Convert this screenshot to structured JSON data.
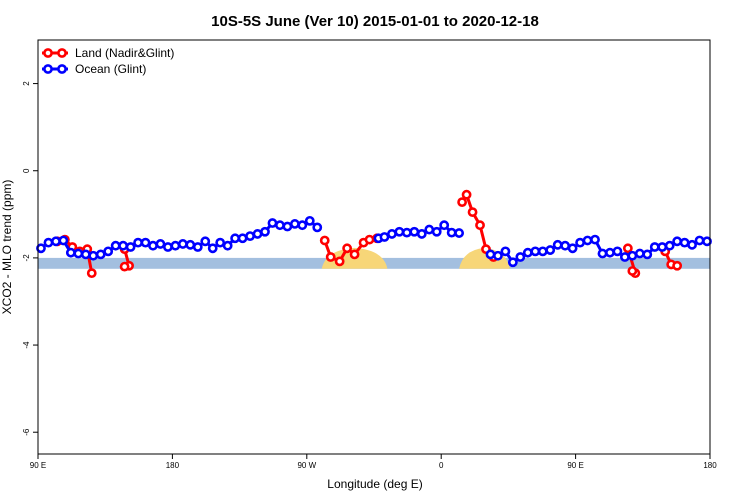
{
  "chart_data": {
    "type": "line",
    "title": "10S-5S June (Ver 10)   2015-01-01 to 2020-12-18",
    "xlabel": "Longitude (deg E)",
    "ylabel": "XCO2 - MLO trend (ppm)",
    "xlim": [
      90,
      540
    ],
    "ylim": [
      -6.5,
      3
    ],
    "x_ticks": [
      {
        "value": 90,
        "label": "90 E"
      },
      {
        "value": 180,
        "label": "180"
      },
      {
        "value": 270,
        "label": "90 W"
      },
      {
        "value": 360,
        "label": "0"
      },
      {
        "value": 450,
        "label": "90 E"
      },
      {
        "value": 540,
        "label": "180"
      }
    ],
    "y_ticks": [
      {
        "value": -6,
        "label": "-6"
      },
      {
        "value": -4,
        "label": "-4"
      },
      {
        "value": -2,
        "label": "-2"
      },
      {
        "value": 0,
        "label": "0"
      },
      {
        "value": 2,
        "label": "2"
      }
    ],
    "legend_position": "top-left",
    "grid": false,
    "background_band": {
      "y_range": [
        -2.25,
        -2.0
      ],
      "ocean_color": "#a3bfdf",
      "land_color": "#f7d678",
      "land_x_ranges": [
        [
          280,
          324
        ],
        [
          372,
          406
        ]
      ]
    },
    "series": [
      {
        "name": "Land (Nadir&Glint)",
        "color": "#ff0000",
        "segments": [
          {
            "x": [
              103,
              108,
              113,
              118,
              123,
              126
            ],
            "y": [
              -1.62,
              -1.58,
              -1.75,
              -1.85,
              -1.8,
              -2.35
            ]
          },
          {
            "x": [
              148,
              151,
              148
            ],
            "y": [
              -1.8,
              -2.18,
              -2.2
            ]
          },
          {
            "x": [
              282,
              286,
              292,
              297,
              302,
              308,
              312,
              317
            ],
            "y": [
              -1.6,
              -1.98,
              -2.08,
              -1.78,
              -1.92,
              -1.65,
              -1.58,
              -1.55
            ]
          },
          {
            "x": [
              374,
              377,
              381,
              386,
              390,
              395
            ],
            "y": [
              -0.72,
              -0.55,
              -0.95,
              -1.25,
              -1.8,
              -1.98
            ]
          },
          {
            "x": [
              485,
              490,
              488
            ],
            "y": [
              -1.78,
              -2.35,
              -2.3
            ]
          },
          {
            "x": [
              510,
              514,
              518
            ],
            "y": [
              -1.85,
              -2.15,
              -2.18
            ]
          }
        ]
      },
      {
        "name": "Ocean (Glint)",
        "color": "#0000ff",
        "segments": [
          {
            "x": [
              92,
              97,
              102,
              107,
              112,
              117,
              122,
              127,
              132,
              137,
              142,
              147,
              152,
              157,
              162,
              167,
              172,
              177,
              182,
              187,
              192,
              197,
              202,
              207,
              212,
              217,
              222,
              227,
              232,
              237,
              242,
              247,
              252,
              257,
              262,
              267,
              272,
              277
            ],
            "y": [
              -1.78,
              -1.65,
              -1.62,
              -1.6,
              -1.88,
              -1.9,
              -1.92,
              -1.95,
              -1.92,
              -1.85,
              -1.72,
              -1.72,
              -1.75,
              -1.65,
              -1.65,
              -1.72,
              -1.68,
              -1.75,
              -1.72,
              -1.68,
              -1.7,
              -1.75,
              -1.62,
              -1.78,
              -1.65,
              -1.72,
              -1.55,
              -1.55,
              -1.5,
              -1.45,
              -1.4,
              -1.2,
              -1.25,
              -1.28,
              -1.22,
              -1.25,
              -1.15,
              -1.3
            ]
          },
          {
            "x": [
              318,
              322,
              327,
              332,
              337,
              342,
              347,
              352,
              357,
              362,
              367,
              372
            ],
            "y": [
              -1.55,
              -1.52,
              -1.45,
              -1.4,
              -1.42,
              -1.4,
              -1.45,
              -1.35,
              -1.4,
              -1.25,
              -1.42,
              -1.43
            ]
          },
          {
            "x": [
              393,
              398,
              403,
              408,
              413,
              418,
              423,
              428,
              433,
              438,
              443,
              448,
              453,
              458,
              463,
              468,
              473,
              478,
              483,
              488,
              493,
              498,
              503,
              508,
              513,
              518,
              523,
              528,
              533,
              538
            ],
            "y": [
              -1.92,
              -1.95,
              -1.85,
              -2.1,
              -1.98,
              -1.88,
              -1.85,
              -1.85,
              -1.82,
              -1.7,
              -1.72,
              -1.78,
              -1.65,
              -1.6,
              -1.58,
              -1.9,
              -1.88,
              -1.85,
              -1.98,
              -1.95,
              -1.9,
              -1.92,
              -1.75,
              -1.75,
              -1.72,
              -1.62,
              -1.65,
              -1.7,
              -1.6,
              -1.62
            ]
          }
        ]
      }
    ]
  }
}
